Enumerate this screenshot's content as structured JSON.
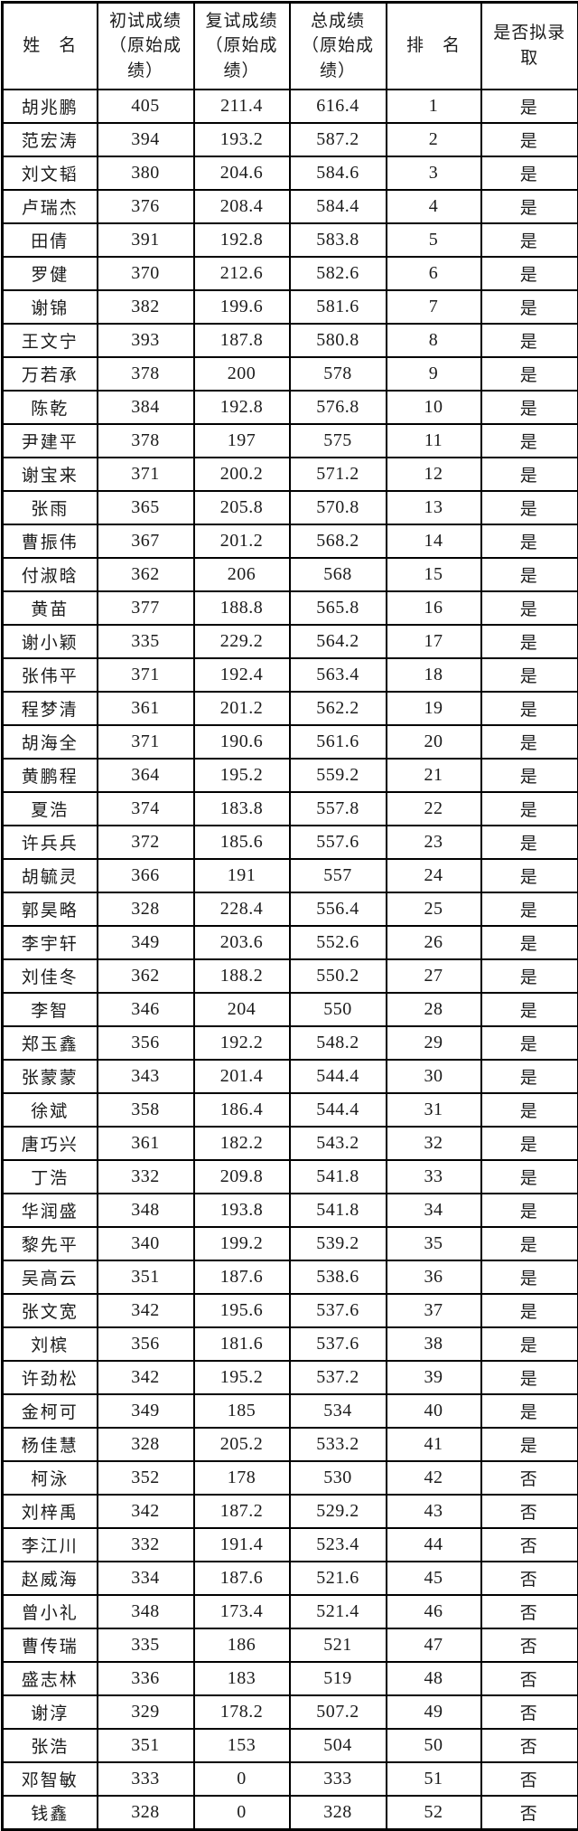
{
  "colors": {
    "background": "#ffffff",
    "border": "#000000",
    "text": "#1b1b1b"
  },
  "table": {
    "columns": [
      {
        "label": "姓　名"
      },
      {
        "label": "初试成绩\n（原始成\n绩）"
      },
      {
        "label": "复试成绩\n（原始成\n绩）"
      },
      {
        "label": "总成绩\n（原始成\n绩）"
      },
      {
        "label": "排　名"
      },
      {
        "label": "是否拟录\n取"
      }
    ],
    "rows": [
      [
        "胡兆鹏",
        "405",
        "211.4",
        "616.4",
        "1",
        "是"
      ],
      [
        "范宏涛",
        "394",
        "193.2",
        "587.2",
        "2",
        "是"
      ],
      [
        "刘文韬",
        "380",
        "204.6",
        "584.6",
        "3",
        "是"
      ],
      [
        "卢瑞杰",
        "376",
        "208.4",
        "584.4",
        "4",
        "是"
      ],
      [
        "田倩",
        "391",
        "192.8",
        "583.8",
        "5",
        "是"
      ],
      [
        "罗健",
        "370",
        "212.6",
        "582.6",
        "6",
        "是"
      ],
      [
        "谢锦",
        "382",
        "199.6",
        "581.6",
        "7",
        "是"
      ],
      [
        "王文宁",
        "393",
        "187.8",
        "580.8",
        "8",
        "是"
      ],
      [
        "万若承",
        "378",
        "200",
        "578",
        "9",
        "是"
      ],
      [
        "陈乾",
        "384",
        "192.8",
        "576.8",
        "10",
        "是"
      ],
      [
        "尹建平",
        "378",
        "197",
        "575",
        "11",
        "是"
      ],
      [
        "谢宝来",
        "371",
        "200.2",
        "571.2",
        "12",
        "是"
      ],
      [
        "张雨",
        "365",
        "205.8",
        "570.8",
        "13",
        "是"
      ],
      [
        "曹振伟",
        "367",
        "201.2",
        "568.2",
        "14",
        "是"
      ],
      [
        "付淑晗",
        "362",
        "206",
        "568",
        "15",
        "是"
      ],
      [
        "黄苗",
        "377",
        "188.8",
        "565.8",
        "16",
        "是"
      ],
      [
        "谢小颖",
        "335",
        "229.2",
        "564.2",
        "17",
        "是"
      ],
      [
        "张伟平",
        "371",
        "192.4",
        "563.4",
        "18",
        "是"
      ],
      [
        "程梦清",
        "361",
        "201.2",
        "562.2",
        "19",
        "是"
      ],
      [
        "胡海全",
        "371",
        "190.6",
        "561.6",
        "20",
        "是"
      ],
      [
        "黄鹏程",
        "364",
        "195.2",
        "559.2",
        "21",
        "是"
      ],
      [
        "夏浩",
        "374",
        "183.8",
        "557.8",
        "22",
        "是"
      ],
      [
        "许兵兵",
        "372",
        "185.6",
        "557.6",
        "23",
        "是"
      ],
      [
        "胡毓灵",
        "366",
        "191",
        "557",
        "24",
        "是"
      ],
      [
        "郭昊略",
        "328",
        "228.4",
        "556.4",
        "25",
        "是"
      ],
      [
        "李宇轩",
        "349",
        "203.6",
        "552.6",
        "26",
        "是"
      ],
      [
        "刘佳冬",
        "362",
        "188.2",
        "550.2",
        "27",
        "是"
      ],
      [
        "李智",
        "346",
        "204",
        "550",
        "28",
        "是"
      ],
      [
        "郑玉鑫",
        "356",
        "192.2",
        "548.2",
        "29",
        "是"
      ],
      [
        "张蒙蒙",
        "343",
        "201.4",
        "544.4",
        "30",
        "是"
      ],
      [
        "徐斌",
        "358",
        "186.4",
        "544.4",
        "31",
        "是"
      ],
      [
        "唐巧兴",
        "361",
        "182.2",
        "543.2",
        "32",
        "是"
      ],
      [
        "丁浩",
        "332",
        "209.8",
        "541.8",
        "33",
        "是"
      ],
      [
        "华润盛",
        "348",
        "193.8",
        "541.8",
        "34",
        "是"
      ],
      [
        "黎先平",
        "340",
        "199.2",
        "539.2",
        "35",
        "是"
      ],
      [
        "吴高云",
        "351",
        "187.6",
        "538.6",
        "36",
        "是"
      ],
      [
        "张文宽",
        "342",
        "195.6",
        "537.6",
        "37",
        "是"
      ],
      [
        "刘槟",
        "356",
        "181.6",
        "537.6",
        "38",
        "是"
      ],
      [
        "许劲松",
        "342",
        "195.2",
        "537.2",
        "39",
        "是"
      ],
      [
        "金柯可",
        "349",
        "185",
        "534",
        "40",
        "是"
      ],
      [
        "杨佳慧",
        "328",
        "205.2",
        "533.2",
        "41",
        "是"
      ],
      [
        "柯泳",
        "352",
        "178",
        "530",
        "42",
        "否"
      ],
      [
        "刘梓禹",
        "342",
        "187.2",
        "529.2",
        "43",
        "否"
      ],
      [
        "李江川",
        "332",
        "191.4",
        "523.4",
        "44",
        "否"
      ],
      [
        "赵威海",
        "334",
        "187.6",
        "521.6",
        "45",
        "否"
      ],
      [
        "曾小礼",
        "348",
        "173.4",
        "521.4",
        "46",
        "否"
      ],
      [
        "曹传瑞",
        "335",
        "186",
        "521",
        "47",
        "否"
      ],
      [
        "盛志林",
        "336",
        "183",
        "519",
        "48",
        "否"
      ],
      [
        "谢淳",
        "329",
        "178.2",
        "507.2",
        "49",
        "否"
      ],
      [
        "张浩",
        "351",
        "153",
        "504",
        "50",
        "否"
      ],
      [
        "邓智敏",
        "333",
        "0",
        "333",
        "51",
        "否"
      ],
      [
        "钱鑫",
        "328",
        "0",
        "328",
        "52",
        "否"
      ]
    ]
  }
}
